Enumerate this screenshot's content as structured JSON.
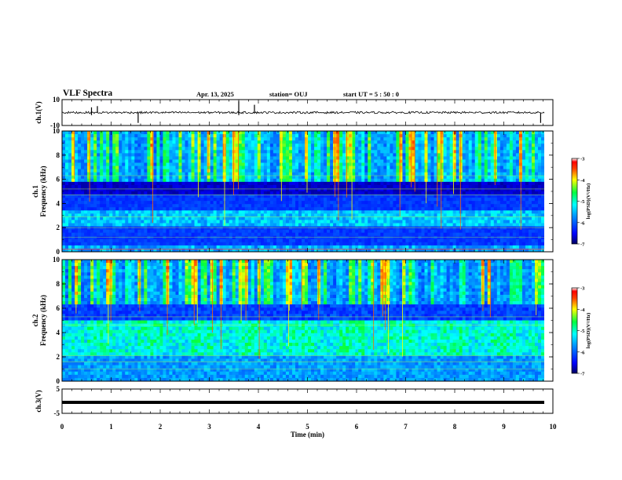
{
  "header": {
    "title": "VLF Spectra",
    "date": "Apr. 13, 2025",
    "station": "station= OUJ",
    "start_time": "start  UT =   5 : 50 : 0"
  },
  "chart_data": [
    {
      "type": "line",
      "panel": "ch1-waveform",
      "ylabel": "ch.1(V)",
      "ylim": [
        -10,
        10
      ],
      "ytick_labels": [
        "10",
        "-10"
      ],
      "baseline_value": 0,
      "xlim": [
        0,
        10
      ]
    },
    {
      "type": "heatmap",
      "panel": "ch1-spectrogram",
      "ylabel_top": "ch.1",
      "ylabel": "Frequency (kHz)",
      "ylim": [
        0,
        10
      ],
      "ytick_labels": [
        "0",
        "2",
        "4",
        "6",
        "8",
        "10"
      ],
      "xlim": [
        0,
        9.8
      ],
      "colorbar": {
        "label": "log(PSD)(V²/Hz)",
        "range": [
          -7,
          -3
        ],
        "tick_labels": [
          "-3",
          "-4",
          "-5",
          "-6",
          "-7"
        ]
      }
    },
    {
      "type": "heatmap",
      "panel": "ch2-spectrogram",
      "ylabel_top": "ch.2",
      "ylabel": "Frequency (kHz)",
      "ylim": [
        0,
        10
      ],
      "ytick_labels": [
        "0",
        "2",
        "4",
        "6",
        "8",
        "10"
      ],
      "xlim": [
        0,
        9.8
      ],
      "colorbar": {
        "label": "log(PSD)(V²/Hz)",
        "range": [
          -7,
          -3
        ],
        "tick_labels": [
          "-3",
          "-4",
          "-5",
          "-6",
          "-7"
        ]
      }
    },
    {
      "type": "line",
      "panel": "ch3-waveform",
      "ylabel": "ch.3(V)",
      "ylim": [
        -5,
        5
      ],
      "ytick_labels": [
        "5",
        "-5"
      ],
      "baseline_value": -0.5,
      "xlim": [
        0,
        10
      ]
    }
  ],
  "x_axis": {
    "label": "Time (min)",
    "range": [
      0,
      10
    ],
    "tick_labels": [
      "0",
      "1",
      "2",
      "3",
      "4",
      "5",
      "6",
      "7",
      "8",
      "9",
      "10"
    ]
  }
}
